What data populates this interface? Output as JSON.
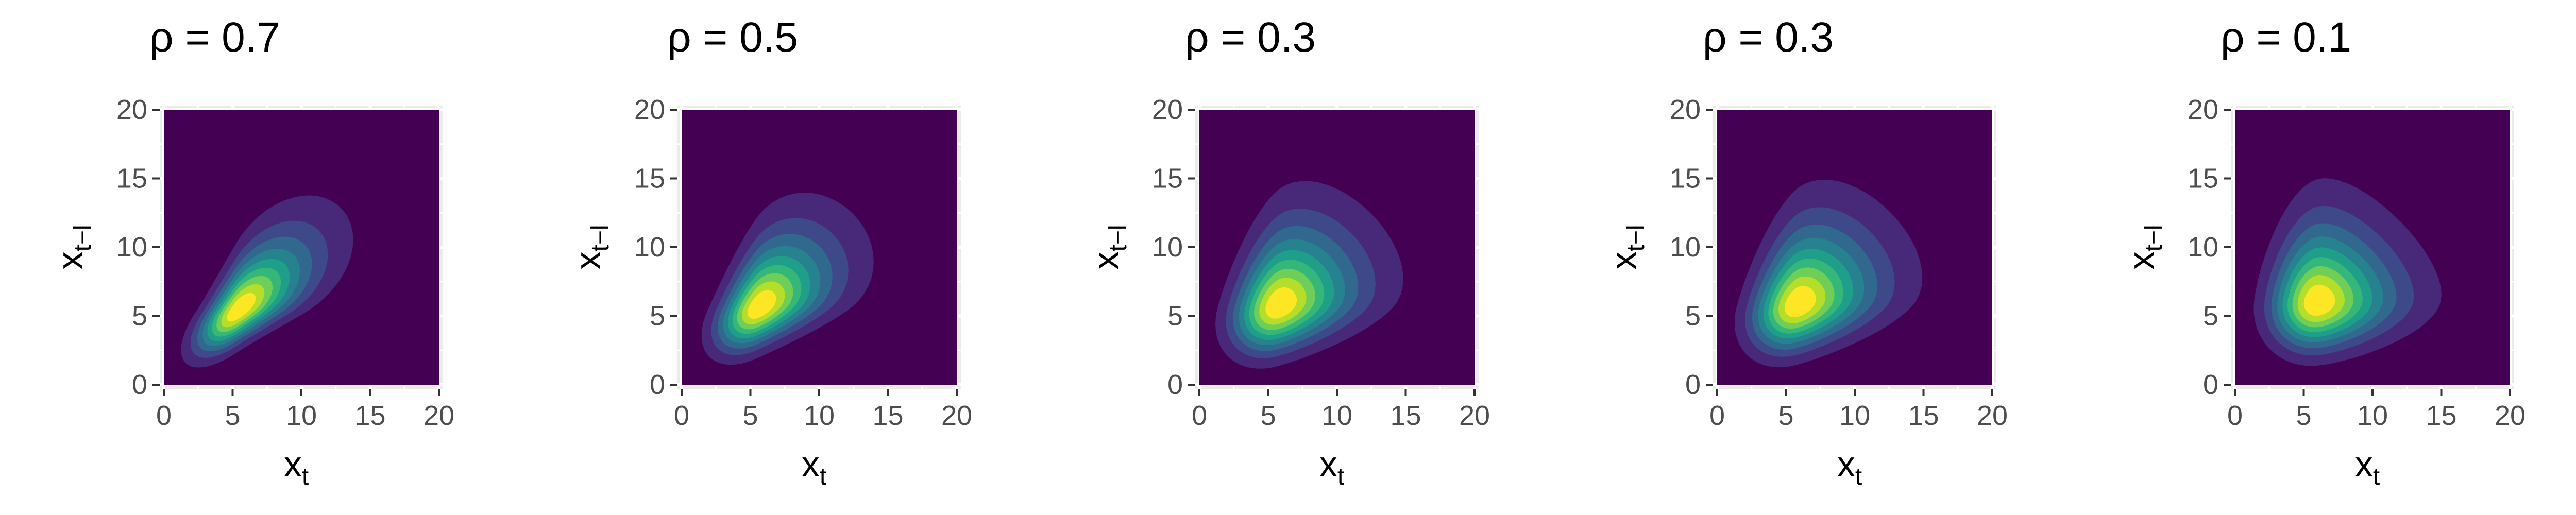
{
  "chart_data": [
    {
      "type": "heatmap",
      "title": "ρ = 0.7",
      "xlabel": "x",
      "xlabel_sub": "t",
      "ylabel": "x",
      "ylabel_sub": "t−l",
      "xlim": [
        0,
        20
      ],
      "ylim": [
        0,
        20
      ],
      "x_ticks": [
        0,
        5,
        10,
        15,
        20
      ],
      "y_ticks": [
        0,
        5,
        10,
        15,
        20
      ],
      "grid": true,
      "colormap": "viridis",
      "contour_levels": 10,
      "mode": [
        5.5,
        5.5
      ],
      "spread": [
        2.2,
        2.2
      ],
      "tail": [
        1.0,
        1.0
      ],
      "correlation": 0.7
    },
    {
      "type": "heatmap",
      "title": "ρ = 0.5",
      "xlabel": "x",
      "xlabel_sub": "t",
      "ylabel": "x",
      "ylabel_sub": "t−l",
      "xlim": [
        0,
        20
      ],
      "ylim": [
        0,
        20
      ],
      "x_ticks": [
        0,
        5,
        10,
        15,
        20
      ],
      "y_ticks": [
        0,
        5,
        10,
        15,
        20
      ],
      "grid": true,
      "colormap": "viridis",
      "contour_levels": 10,
      "mode": [
        5.7,
        5.7
      ],
      "spread": [
        2.2,
        2.2
      ],
      "tail": [
        1.0,
        1.0
      ],
      "correlation": 0.5
    },
    {
      "type": "heatmap",
      "title": "ρ = 0.3",
      "xlabel": "x",
      "xlabel_sub": "t",
      "ylabel": "x",
      "ylabel_sub": "t−l",
      "xlim": [
        0,
        20
      ],
      "ylim": [
        0,
        20
      ],
      "x_ticks": [
        0,
        5,
        10,
        15,
        20
      ],
      "y_ticks": [
        0,
        5,
        10,
        15,
        20
      ],
      "grid": true,
      "colormap": "viridis",
      "contour_levels": 10,
      "mode": [
        5.8,
        5.8
      ],
      "spread": [
        2.4,
        2.4
      ],
      "tail": [
        1.0,
        1.0
      ],
      "correlation": 0.3
    },
    {
      "type": "heatmap",
      "title": "ρ = 0.3",
      "xlabel": "x",
      "xlabel_sub": "t",
      "ylabel": "x",
      "ylabel_sub": "t−l",
      "xlim": [
        0,
        20
      ],
      "ylim": [
        0,
        20
      ],
      "x_ticks": [
        0,
        5,
        10,
        15,
        20
      ],
      "y_ticks": [
        0,
        5,
        10,
        15,
        20
      ],
      "grid": true,
      "colormap": "viridis",
      "contour_levels": 10,
      "mode": [
        5.9,
        5.9
      ],
      "spread": [
        2.4,
        2.4
      ],
      "tail": [
        1.0,
        1.0
      ],
      "correlation": 0.3
    },
    {
      "type": "heatmap",
      "title": "ρ = 0.1",
      "xlabel": "x",
      "xlabel_sub": "t",
      "ylabel": "x",
      "ylabel_sub": "t−l",
      "xlim": [
        0,
        20
      ],
      "ylim": [
        0,
        20
      ],
      "x_ticks": [
        0,
        5,
        10,
        15,
        20
      ],
      "y_ticks": [
        0,
        5,
        10,
        15,
        20
      ],
      "grid": true,
      "colormap": "viridis",
      "contour_levels": 10,
      "mode": [
        6.0,
        6.0
      ],
      "spread": [
        2.4,
        2.4
      ],
      "tail": [
        1.0,
        1.0
      ],
      "correlation": 0.1
    }
  ],
  "colors": {
    "panel_background": "#ebebeb",
    "grid": "#ffffff",
    "tick_text": "#4d4d4d",
    "tick_mark": "#333333"
  }
}
